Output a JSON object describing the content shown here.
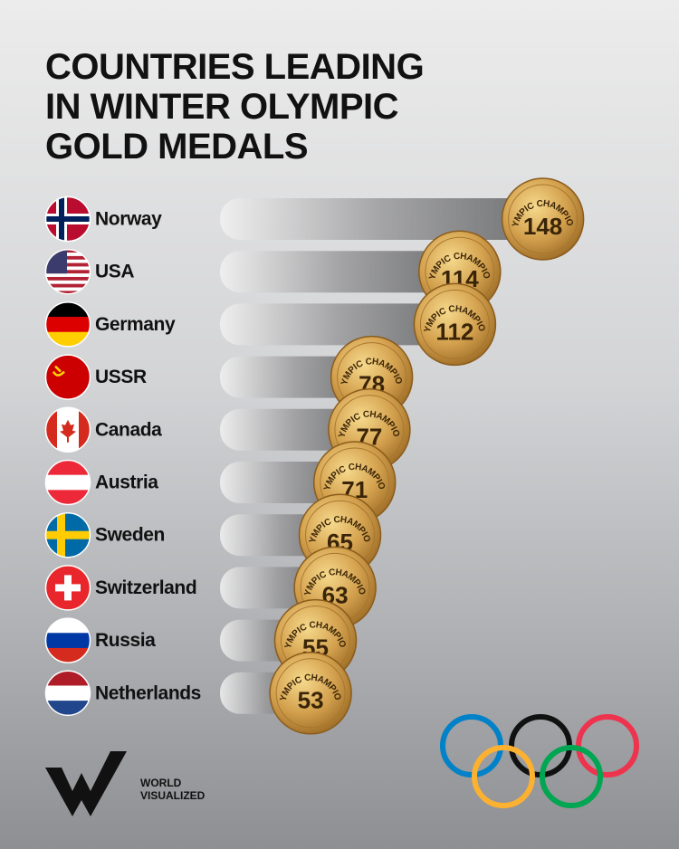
{
  "chart_data": {
    "type": "bar",
    "title": "COUNTRIES LEADING IN WINTER OLYMPIC GOLD MEDALS",
    "categories": [
      "Norway",
      "USA",
      "Germany",
      "USSR",
      "Canada",
      "Austria",
      "Sweden",
      "Switzerland",
      "Russia",
      "Netherlands"
    ],
    "values": [
      148,
      114,
      112,
      78,
      77,
      71,
      65,
      63,
      55,
      53
    ],
    "medal_text": "OLYMPIC CHAMPIONS",
    "color": "#c9963f"
  },
  "logo": {
    "lines": [
      "WORLD",
      "VISUALIZED"
    ]
  }
}
